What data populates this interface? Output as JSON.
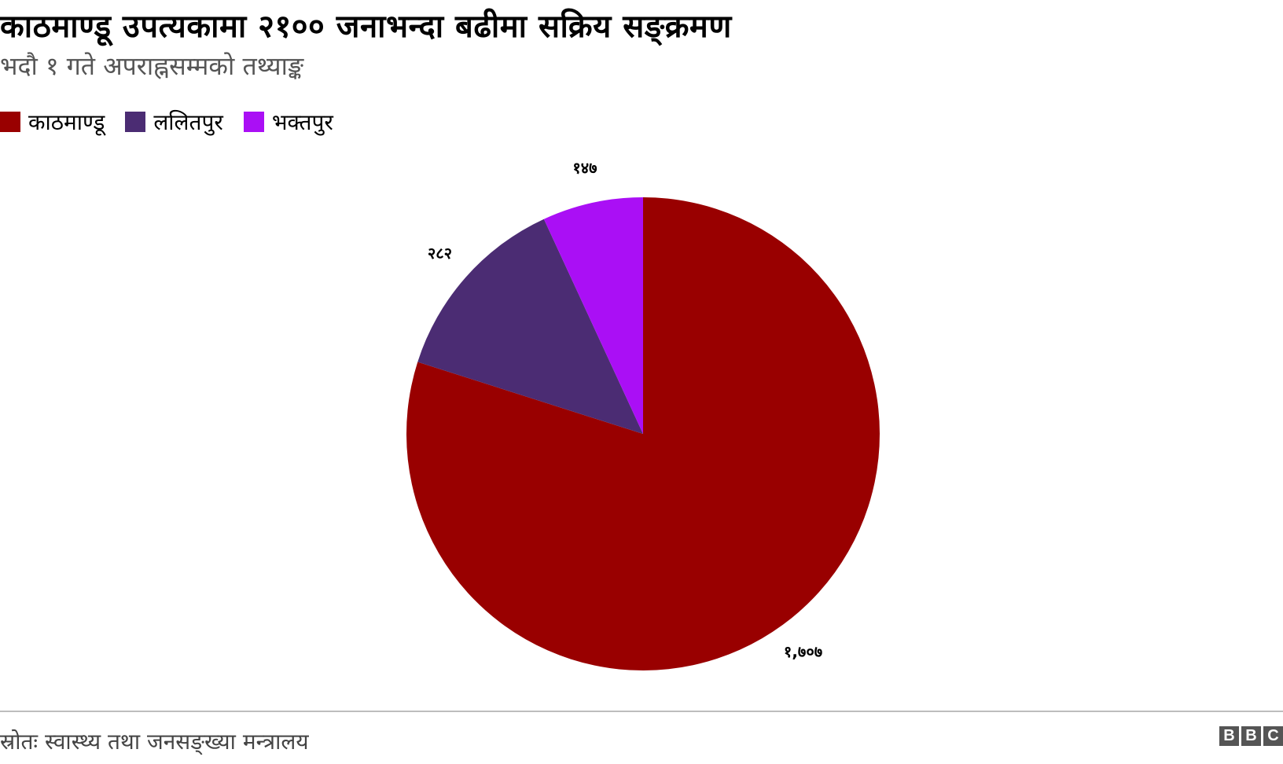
{
  "chart_data": {
    "type": "pie",
    "title": "काठमाण्डू उपत्यकामा २१०० जनाभन्दा बढीमा सक्रिय सङ्क्रमण",
    "subtitle": "भदौ १ गते अपराह्नसम्मको तथ्याङ्क",
    "legend_position": "top-left",
    "categories": [
      "काठमाण्डू",
      "ललितपुर",
      "भक्तपुर"
    ],
    "values": [
      1707,
      282,
      147
    ],
    "data_labels": [
      "१,७०७",
      "२८२",
      "१४७"
    ],
    "colors": [
      "#990000",
      "#4b2c73",
      "#aa0ff5"
    ]
  },
  "footer": {
    "source": "स्रोतः स्वास्थ्य तथा जनसङ्ख्या मन्त्रालय",
    "logo": [
      "B",
      "B",
      "C"
    ]
  }
}
